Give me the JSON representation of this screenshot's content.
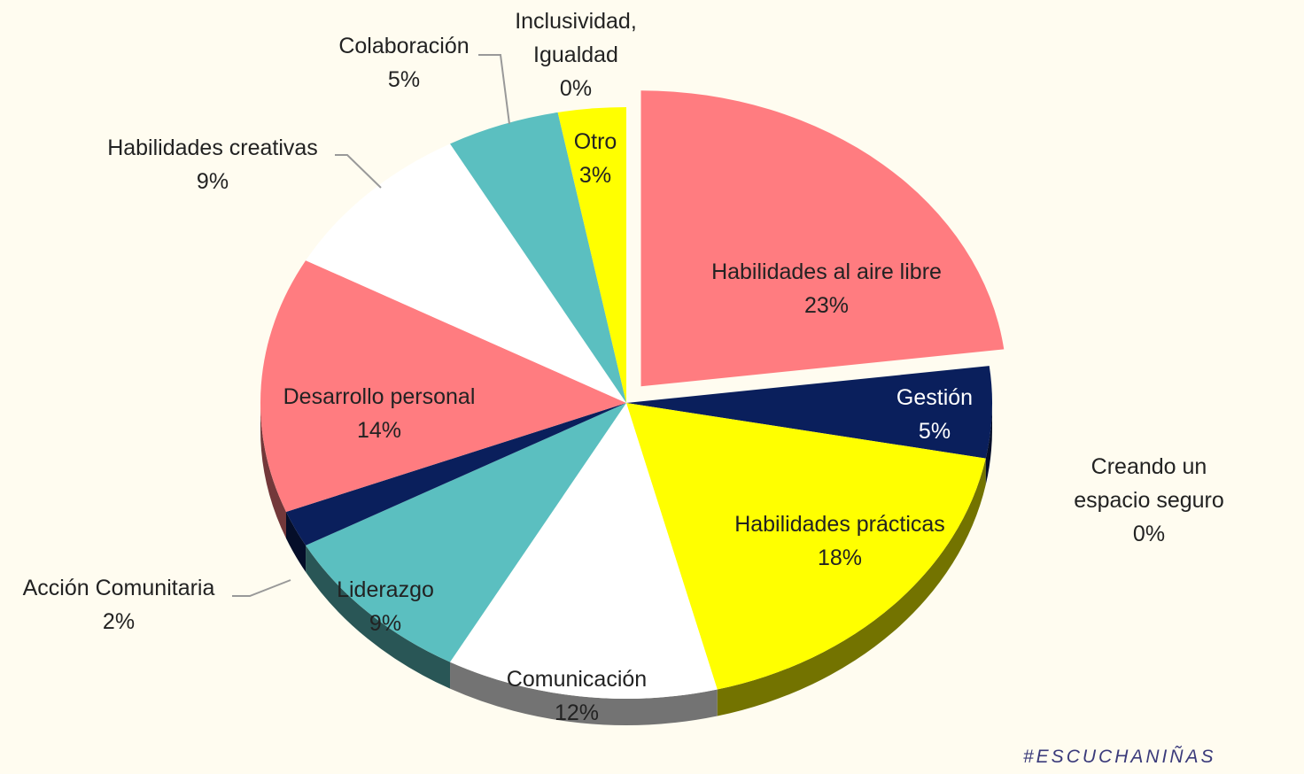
{
  "chart_data": {
    "type": "pie",
    "categories": [
      "Habilidades al aire libre",
      "Gestión",
      "Creando un espacio seguro",
      "Habilidades prácticas",
      "Comunicación",
      "Liderazgo",
      "Acción Comunitaria",
      "Desarrollo personal",
      "Habilidades creativas",
      "Colaboración",
      "Inclusividad, Igualdad",
      "Otro"
    ],
    "values": [
      23,
      5,
      0,
      18,
      12,
      9,
      2,
      14,
      9,
      5,
      0,
      3
    ],
    "value_labels": [
      "23%",
      "5%",
      "0%",
      "18%",
      "12%",
      "9%",
      "2%",
      "14%",
      "9%",
      "5%",
      "0%",
      "3%"
    ],
    "colors": [
      "#ff7c80",
      "#0a1f5c",
      "#5b9bd5",
      "#ffff00",
      "#ffffff",
      "#5bbfc0",
      "#0a1f5c",
      "#ff7c80",
      "#ffffff",
      "#5bbfc0",
      "#ffc000",
      "#ffff00"
    ]
  },
  "hashtag": "#ESCUCHANIÑAS"
}
